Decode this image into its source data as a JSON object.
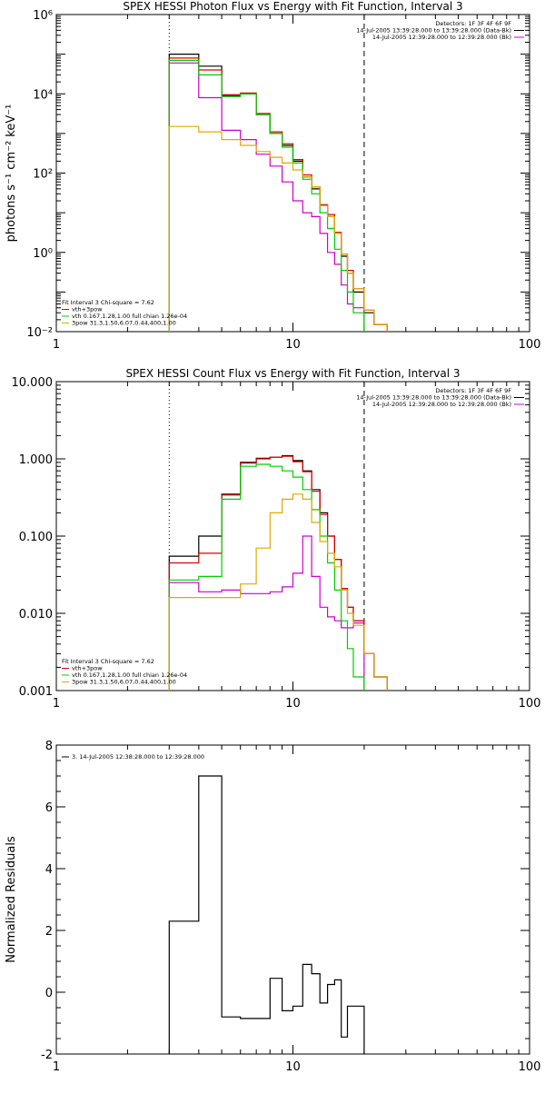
{
  "chart_data": [
    {
      "type": "line",
      "title": "SPEX HESSI Photon Flux vs Energy with Fit Function, Interval 3",
      "ylabel": "photons s⁻¹ cm⁻² keV⁻¹",
      "xlabel": "",
      "xscale": "log",
      "yscale": "log",
      "xlim": [
        1,
        100
      ],
      "ylim": [
        0.01,
        1000000
      ],
      "xticks": [
        {
          "v": 1,
          "t": "1"
        },
        {
          "v": 10,
          "t": "10"
        },
        {
          "v": 100,
          "t": "100"
        }
      ],
      "yticks": [
        {
          "v": 0.01,
          "t": "10⁻²"
        },
        {
          "v": 1,
          "t": "10⁰"
        },
        {
          "v": 100,
          "t": "10²"
        },
        {
          "v": 10000,
          "t": "10⁴"
        },
        {
          "v": 1000000,
          "t": "10⁶"
        }
      ],
      "vlines": [
        {
          "x": 3,
          "style": "dotted"
        },
        {
          "x": 20,
          "style": "dashed"
        }
      ],
      "legend_right": [
        {
          "text": "Detectors: 1F 3F 4F 6F 9F",
          "color": ""
        },
        {
          "text": "14-Jul-2005 13:39:28.000 to 13:39:28.000 (Data-Bk)",
          "color": "#000000"
        },
        {
          "text": "14-Jul-2005 12:39:28.000 to 12:39:28.000 (Bk)",
          "color": "#cc00cc"
        }
      ],
      "legend_left": [
        {
          "text": "Fit Interval 3   Chi-square = 7.62",
          "color": ""
        },
        {
          "text": "vth+3pow",
          "color": "#dd0000"
        },
        {
          "text": "vth 0.167,1.28,1.00  full chian 1.26e-04",
          "color": "#00cc00"
        },
        {
          "text": "3pow 31.3,1.50,6.07,0.44,400,1.00",
          "color": "#ddaa00"
        }
      ],
      "energy_bins": [
        3,
        4,
        5,
        6,
        7,
        8,
        9,
        10,
        11,
        12,
        13,
        14,
        15,
        16,
        17,
        18,
        20,
        22,
        25
      ],
      "series": [
        {
          "name": "Data-Bk",
          "color": "#000000",
          "values": [
            100000,
            50000,
            9000,
            10000,
            3000,
            1000,
            500,
            200,
            80,
            40,
            15,
            8,
            3,
            0.8,
            0.3,
            0.1,
            0.03,
            0.015
          ]
        },
        {
          "name": "Bk",
          "color": "#cc00cc",
          "values": [
            60000,
            8000,
            1200,
            700,
            300,
            150,
            60,
            20,
            10,
            8,
            3,
            1,
            0.5,
            0.15,
            0.05,
            0.04,
            null,
            null
          ]
        },
        {
          "name": "vth+3pow",
          "color": "#dd0000",
          "values": [
            80000,
            40000,
            9500,
            10500,
            3200,
            1100,
            550,
            220,
            90,
            45,
            16,
            9,
            3.2,
            0.9,
            0.35,
            0.12,
            0.035,
            0.015
          ]
        },
        {
          "name": "vth",
          "color": "#00cc00",
          "values": [
            70000,
            30000,
            8500,
            10000,
            3000,
            1000,
            450,
            180,
            70,
            30,
            10,
            4,
            1.2,
            0.35,
            0.1,
            0.03,
            null,
            null
          ]
        },
        {
          "name": "3pow",
          "color": "#ddaa00",
          "values": [
            1500,
            1100,
            700,
            500,
            350,
            250,
            180,
            120,
            80,
            45,
            15,
            8,
            3,
            0.9,
            0.3,
            0.12,
            0.035,
            0.015
          ]
        }
      ]
    },
    {
      "type": "line",
      "title": "SPEX HESSI Count Flux vs Energy with Fit Function, Interval 3",
      "ylabel": "",
      "xlabel": "",
      "xscale": "log",
      "yscale": "log",
      "xlim": [
        1,
        100
      ],
      "ylim": [
        0.001,
        10
      ],
      "xticks": [
        {
          "v": 1,
          "t": "1"
        },
        {
          "v": 10,
          "t": "10"
        },
        {
          "v": 100,
          "t": "100"
        }
      ],
      "yticks": [
        {
          "v": 0.001,
          "t": "0.001"
        },
        {
          "v": 0.01,
          "t": "0.010"
        },
        {
          "v": 0.1,
          "t": "0.100"
        },
        {
          "v": 1,
          "t": "1.000"
        },
        {
          "v": 10,
          "t": "10.000"
        }
      ],
      "vlines": [
        {
          "x": 3,
          "style": "dotted"
        },
        {
          "x": 20,
          "style": "dashed"
        }
      ],
      "legend_right": [
        {
          "text": "Detectors: 1F 3F 4F 6F 9F",
          "color": ""
        },
        {
          "text": "14-Jul-2005 13:39:28.000 to 13:39:28.000 (Data-Bk)",
          "color": "#000000"
        },
        {
          "text": "14-Jul-2005 12:39:28.000 to 12:39:28.000 (Bk)",
          "color": "#cc00cc"
        }
      ],
      "legend_left": [
        {
          "text": "Fit Interval 3   Chi-square = 7.62",
          "color": ""
        },
        {
          "text": "vth+3pow",
          "color": "#dd0000"
        },
        {
          "text": "vth 0.167,1.28,1.00  full chian 1.26e-04",
          "color": "#00cc00"
        },
        {
          "text": "3pow 31.3,1.50,6.07,0.44,400,1.00",
          "color": "#ddaa00"
        }
      ],
      "energy_bins": [
        3,
        4,
        5,
        6,
        7,
        8,
        9,
        10,
        11,
        12,
        13,
        14,
        15,
        16,
        17,
        18,
        20,
        22,
        25
      ],
      "series": [
        {
          "name": "Data-Bk",
          "color": "#000000",
          "values": [
            0.055,
            0.1,
            0.35,
            0.9,
            1.02,
            1.05,
            1.1,
            0.95,
            0.7,
            0.4,
            0.2,
            0.1,
            0.05,
            0.02,
            0.012,
            0.008,
            0.003,
            0.0015
          ]
        },
        {
          "name": "Bk",
          "color": "#cc00cc",
          "values": [
            0.025,
            0.019,
            0.02,
            0.018,
            0.018,
            0.019,
            0.022,
            0.033,
            0.1,
            0.03,
            0.012,
            0.009,
            0.008,
            0.0065,
            0.0065,
            0.0075,
            null,
            null
          ]
        },
        {
          "name": "vth+3pow",
          "color": "#dd0000",
          "values": [
            0.045,
            0.06,
            0.34,
            0.88,
            1.0,
            1.05,
            1.08,
            0.92,
            0.68,
            0.38,
            0.19,
            0.1,
            0.05,
            0.021,
            0.012,
            0.008,
            0.003,
            0.0015
          ]
        },
        {
          "name": "vth",
          "color": "#00cc00",
          "values": [
            0.027,
            0.03,
            0.3,
            0.8,
            0.85,
            0.8,
            0.7,
            0.58,
            0.4,
            0.22,
            0.1,
            0.045,
            0.02,
            0.008,
            0.0035,
            0.0015,
            null,
            null
          ]
        },
        {
          "name": "3pow",
          "color": "#ddaa00",
          "values": [
            0.016,
            0.016,
            0.016,
            0.024,
            0.07,
            0.2,
            0.3,
            0.35,
            0.3,
            0.15,
            0.085,
            0.06,
            0.04,
            0.02,
            0.01,
            0.007,
            0.003,
            0.0015
          ]
        }
      ]
    },
    {
      "type": "line",
      "title": "",
      "ylabel": "Normalized Residuals",
      "xlabel": "",
      "xscale": "log",
      "yscale": "linear",
      "xlim": [
        1,
        100
      ],
      "ylim": [
        -2,
        8
      ],
      "xticks": [
        {
          "v": 1,
          "t": "1"
        },
        {
          "v": 10,
          "t": "10"
        },
        {
          "v": 100,
          "t": "100"
        }
      ],
      "yticks": [
        {
          "v": -2,
          "t": "-2"
        },
        {
          "v": 0,
          "t": "0"
        },
        {
          "v": 2,
          "t": "2"
        },
        {
          "v": 4,
          "t": "4"
        },
        {
          "v": 6,
          "t": "6"
        },
        {
          "v": 8,
          "t": "8"
        }
      ],
      "vlines": [],
      "legend_right": [],
      "legend_left": [
        {
          "text": "3. 14-Jul-2005 12:38:28.000 to 12:39:28.000",
          "color": "#000000"
        }
      ],
      "energy_bins": [
        3,
        4,
        5,
        6,
        7,
        8,
        9,
        10,
        11,
        12,
        13,
        14,
        15,
        16,
        17,
        18,
        20
      ],
      "series": [
        {
          "name": "",
          "color": "#000000",
          "values": [
            2.3,
            7.0,
            -0.8,
            -0.85,
            -0.85,
            0.45,
            -0.6,
            -0.45,
            0.9,
            0.6,
            -0.35,
            0.25,
            0.4,
            -1.45,
            -0.45,
            -0.45
          ]
        }
      ]
    }
  ]
}
